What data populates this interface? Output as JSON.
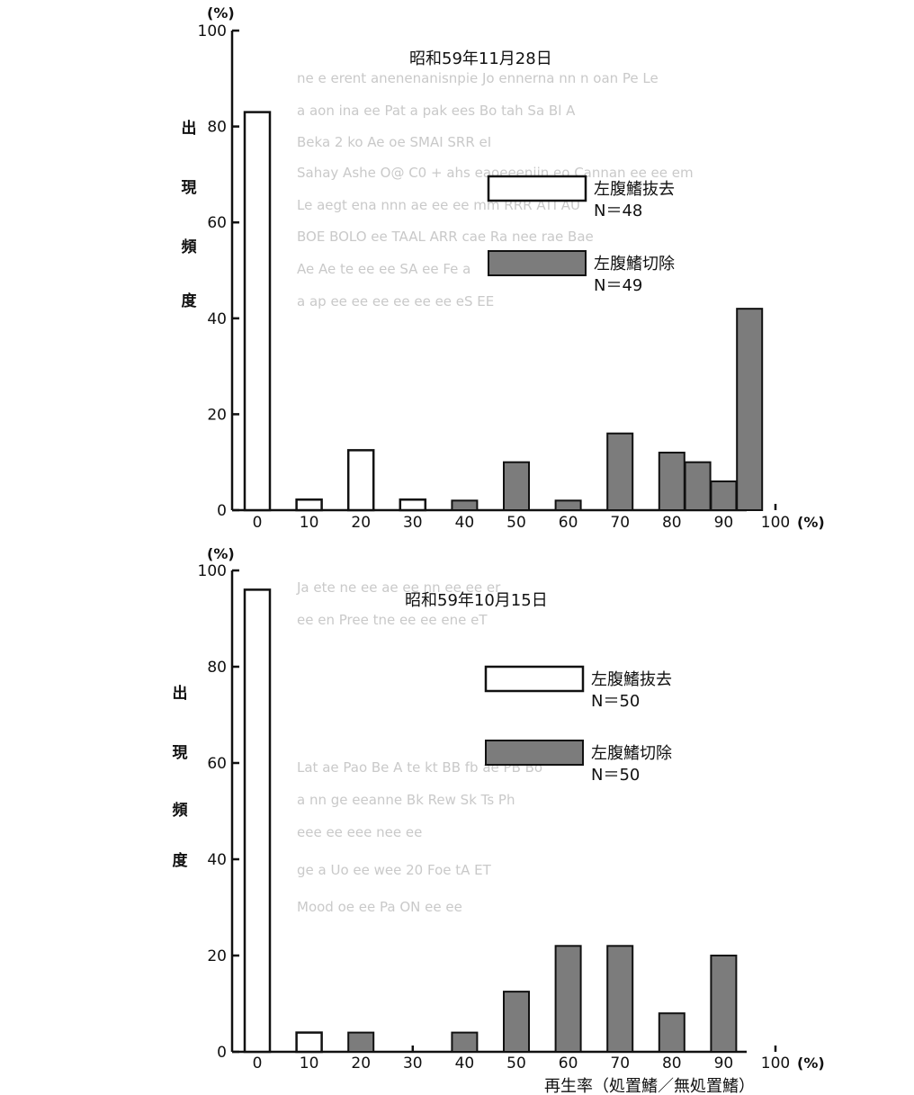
{
  "colors": {
    "open": "#ffffff",
    "filled": "#7c7c7c",
    "axis": "#111111",
    "background": "#ffffff"
  },
  "chart_data": [
    {
      "type": "bar",
      "title": "昭和59年11月28日",
      "ylabel": "出現頻度",
      "y_unit": "(%)",
      "ylim": [
        0,
        100
      ],
      "yticks": [
        "0",
        "20",
        "40",
        "60",
        "80",
        "100"
      ],
      "x_ticks": [
        "0",
        "10",
        "20",
        "30",
        "40",
        "50",
        "60",
        "70",
        "80",
        "90",
        "100"
      ],
      "x_unit": "(%)",
      "xlabel": "",
      "legend_position": "right",
      "series": [
        {
          "name": "左腹鰭抜去",
          "n_label": "N＝48",
          "style": "open",
          "points": [
            {
              "x": 0,
              "y": 83
            },
            {
              "x": 10,
              "y": 2.2
            },
            {
              "x": 20,
              "y": 12.5
            },
            {
              "x": 30,
              "y": 2.2
            }
          ]
        },
        {
          "name": "左腹鰭切除",
          "n_label": "N＝49",
          "style": "filled",
          "points": [
            {
              "x": 40,
              "y": 2
            },
            {
              "x": 50,
              "y": 10
            },
            {
              "x": 60,
              "y": 2
            },
            {
              "x": 70,
              "y": 16
            },
            {
              "x": 80,
              "y": 12
            },
            {
              "x": 85,
              "y": 10
            },
            {
              "x": 90,
              "y": 6
            },
            {
              "x": 95,
              "y": 42
            }
          ]
        }
      ]
    },
    {
      "type": "bar",
      "title": "昭和59年10月15日",
      "ylabel": "出現頻度",
      "y_unit": "(%)",
      "ylim": [
        0,
        100
      ],
      "yticks": [
        "0",
        "20",
        "40",
        "60",
        "80",
        "100"
      ],
      "x_ticks": [
        "0",
        "10",
        "20",
        "30",
        "40",
        "50",
        "60",
        "70",
        "80",
        "90",
        "100"
      ],
      "x_unit": "(%)",
      "xlabel": "再生率（処置鰭／無処置鰭）",
      "legend_position": "right",
      "series": [
        {
          "name": "左腹鰭抜去",
          "n_label": "N＝50",
          "style": "open",
          "points": [
            {
              "x": 0,
              "y": 96
            },
            {
              "x": 10,
              "y": 4
            },
            {
              "x": 30,
              "y": 0
            },
            {
              "x": 100,
              "y": 0
            }
          ]
        },
        {
          "name": "左腹鰭切除",
          "n_label": "N＝50",
          "style": "filled",
          "points": [
            {
              "x": 20,
              "y": 4
            },
            {
              "x": 40,
              "y": 4
            },
            {
              "x": 50,
              "y": 12.5
            },
            {
              "x": 60,
              "y": 22
            },
            {
              "x": 70,
              "y": 22
            },
            {
              "x": 80,
              "y": 8
            },
            {
              "x": 90,
              "y": 20
            }
          ]
        }
      ]
    }
  ]
}
